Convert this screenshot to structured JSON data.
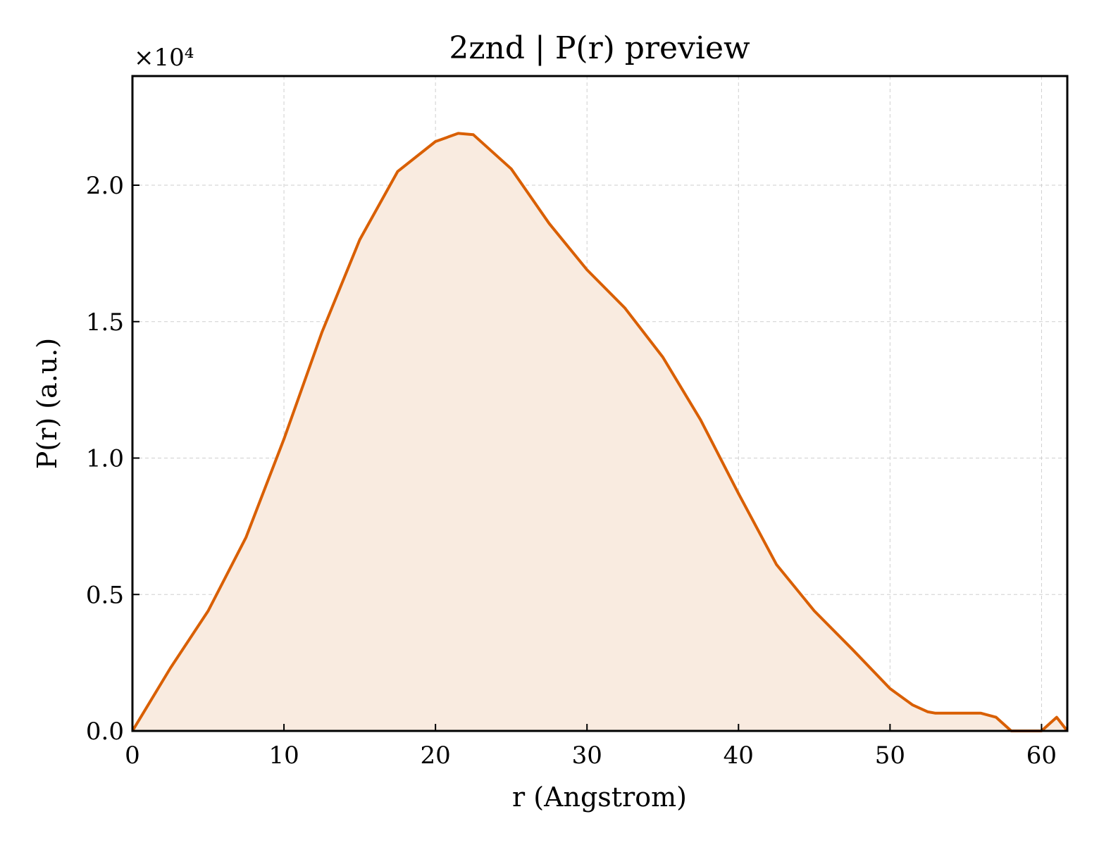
{
  "chart_data": {
    "type": "area",
    "title": "2znd | P(r) preview",
    "xlabel": "r (Angstrom)",
    "ylabel": "P(r) (a.u.)",
    "y_offset_text": "×10⁴",
    "y_scale": 10000,
    "xlim": [
      0,
      61.7
    ],
    "ylim": [
      0,
      24000
    ],
    "x_ticks": [
      0,
      10,
      20,
      30,
      40,
      50,
      60
    ],
    "x_tick_labels": [
      "0",
      "10",
      "20",
      "30",
      "40",
      "50",
      "60"
    ],
    "y_ticks": [
      0,
      5000,
      10000,
      15000,
      20000
    ],
    "y_tick_labels": [
      "0.0",
      "0.5",
      "1.0",
      "1.5",
      "2.0"
    ],
    "grid": true,
    "colors": {
      "line": "#d95f02",
      "fill": "#f9ebe0"
    },
    "series": [
      {
        "x": [
          0,
          2.5,
          5,
          7.5,
          10,
          12.5,
          15,
          17.5,
          20,
          21.5,
          22.5,
          25,
          27.5,
          30,
          32.5,
          35,
          37.5,
          40,
          42.5,
          45,
          47.5,
          50,
          51.5,
          52.5,
          53,
          55,
          56,
          57,
          58,
          60,
          61,
          61.7
        ],
        "y": [
          0,
          2300,
          4400,
          7100,
          10700,
          14600,
          18000,
          20500,
          21600,
          21900,
          21850,
          20600,
          18600,
          16900,
          15500,
          13700,
          11400,
          8700,
          6100,
          4400,
          3000,
          1550,
          950,
          700,
          650,
          650,
          650,
          500,
          0,
          0,
          500,
          0
        ]
      }
    ]
  }
}
